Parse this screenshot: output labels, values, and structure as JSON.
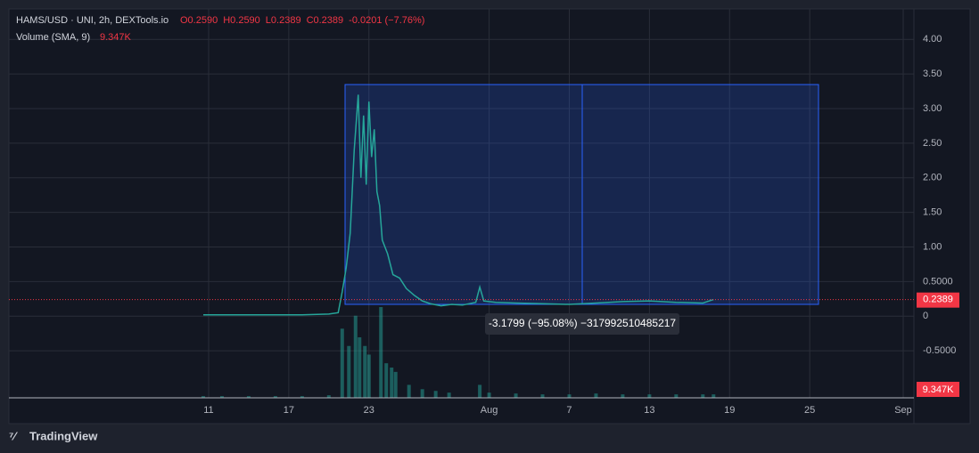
{
  "chart_data": {
    "type": "line",
    "symbol": "HAMS/USD · UNI, 2h, DEXTools.io",
    "ohlc": [
      "O0.2590",
      "H0.2590",
      "L0.2389",
      "C0.2389",
      "-0.0201 (−7.76%)"
    ],
    "volume_title": "Volume (SMA, 9)",
    "volume_label": "9.347K",
    "last_price": {
      "value": 0.2389,
      "label": "0.2389"
    },
    "measure_label": "-3.1799 (−95.08%) −317992510485217",
    "brand": "TradingView",
    "xlim": [
      -3.95,
      63.8
    ],
    "xticks": [
      {
        "value": 11,
        "label": "11"
      },
      {
        "value": 17,
        "label": "17"
      },
      {
        "value": 23,
        "label": "23"
      },
      {
        "value": 32,
        "label": "Aug"
      },
      {
        "value": 38,
        "label": "7"
      },
      {
        "value": 44,
        "label": "13"
      },
      {
        "value": 50,
        "label": "19"
      },
      {
        "value": 56,
        "label": "25"
      },
      {
        "value": 63,
        "label": "Sep"
      }
    ],
    "ylim": [
      -1.18,
      4.44
    ],
    "yticks": [
      {
        "value": 4,
        "label": "4.00"
      },
      {
        "value": 3.5,
        "label": "3.50"
      },
      {
        "value": 3,
        "label": "3.00"
      },
      {
        "value": 2.5,
        "label": "2.50"
      },
      {
        "value": 2,
        "label": "2.00"
      },
      {
        "value": 1.5,
        "label": "1.50"
      },
      {
        "value": 1,
        "label": "1.00"
      },
      {
        "value": 0.5,
        "label": "0.5000"
      },
      0,
      {
        "value": -0.5,
        "label": "-0.5000"
      }
    ],
    "y2lim": [
      0,
      450
    ],
    "grid": true,
    "series": [
      {
        "name": "Price",
        "color": "#26a69a",
        "x": [
          10.6,
          12,
          14,
          16,
          18,
          20,
          20.7,
          21.0,
          21.3,
          21.6,
          21.9,
          22.2,
          22.4,
          22.6,
          22.8,
          23.0,
          23.2,
          23.4,
          23.6,
          23.8,
          24.0,
          24.4,
          24.8,
          25.3,
          25.8,
          26.4,
          27.0,
          27.6,
          28.4,
          29.2,
          30.0,
          31.0,
          31.3,
          31.6,
          32.5,
          34,
          36,
          38,
          40,
          42,
          44,
          46,
          48,
          48.8
        ],
        "values": [
          0.02,
          0.02,
          0.02,
          0.02,
          0.02,
          0.03,
          0.05,
          0.35,
          0.7,
          1.2,
          2.4,
          3.2,
          2.0,
          2.9,
          1.9,
          3.1,
          2.3,
          2.7,
          1.8,
          1.6,
          1.1,
          0.9,
          0.6,
          0.55,
          0.4,
          0.3,
          0.22,
          0.18,
          0.15,
          0.17,
          0.16,
          0.2,
          0.42,
          0.22,
          0.2,
          0.19,
          0.18,
          0.17,
          0.19,
          0.21,
          0.22,
          0.2,
          0.19,
          0.24
        ]
      },
      {
        "name": "Volume",
        "type": "bar",
        "axis": "y2",
        "color": "#26a69a",
        "x": [
          10.6,
          12,
          14,
          16,
          18,
          20,
          21,
          21.5,
          22,
          22.3,
          22.7,
          23,
          23.9,
          24.3,
          24.7,
          25,
          26,
          27,
          28,
          29,
          31.3,
          32,
          34,
          36,
          38,
          40,
          42,
          44,
          46,
          48,
          48.8
        ],
        "values": [
          2,
          2,
          2,
          2,
          2,
          3,
          80,
          60,
          95,
          70,
          60,
          50,
          105,
          40,
          35,
          30,
          15,
          10,
          8,
          6,
          15,
          6,
          5,
          4,
          4,
          5,
          4,
          4,
          4,
          4,
          4
        ]
      }
    ]
  }
}
